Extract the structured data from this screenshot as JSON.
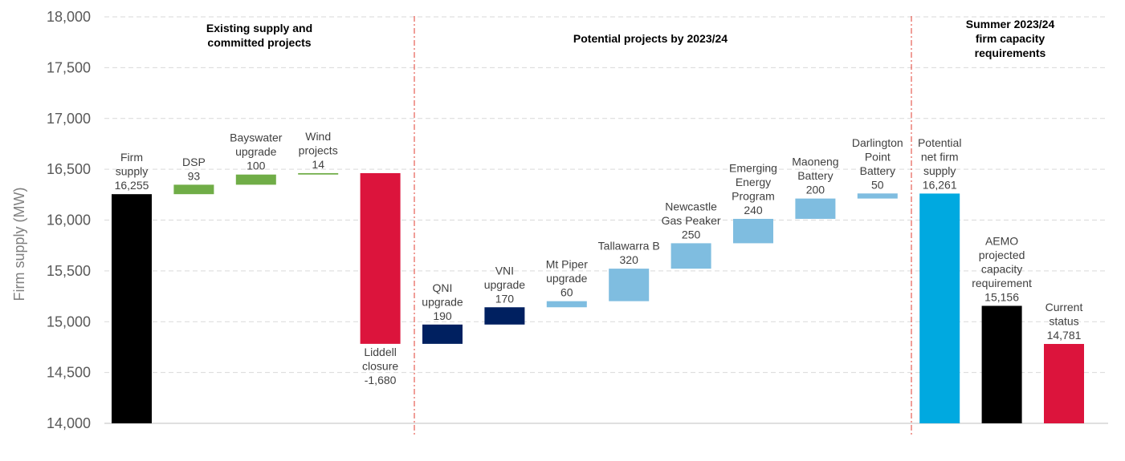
{
  "chart_data": {
    "type": "bar",
    "subtype": "waterfall",
    "ylabel": "Firm supply (MW)",
    "ylim": [
      14000,
      18000
    ],
    "yticks": [
      "14,000",
      "14,500",
      "15,000",
      "15,500",
      "16,000",
      "16,500",
      "17,000",
      "17,500",
      "18,000"
    ],
    "grid": true,
    "sections": [
      {
        "lines": [
          "Existing supply and",
          "committed projects"
        ]
      },
      {
        "lines": [
          "Potential projects by 2023/24"
        ]
      },
      {
        "lines": [
          "Summer 2023/24",
          "firm capacity",
          "requirements"
        ]
      }
    ],
    "colors": {
      "black": "#000000",
      "green": "#70ad47",
      "red": "#dc143c",
      "navy": "#002060",
      "lightblue": "#7fbde0",
      "cyan": "#00a9e0"
    },
    "bars": [
      {
        "label": [
          "Firm",
          "supply",
          "16,255"
        ],
        "base": 14000,
        "top": 16255,
        "color": "black"
      },
      {
        "label": [
          "DSP",
          "93"
        ],
        "base": 16255,
        "top": 16348,
        "color": "green"
      },
      {
        "label": [
          "Bayswater",
          "upgrade",
          "100"
        ],
        "base": 16348,
        "top": 16448,
        "color": "green"
      },
      {
        "label": [
          "Wind",
          "projects",
          "14"
        ],
        "base": 16448,
        "top": 16462,
        "color": "green"
      },
      {
        "label": [
          "Liddell",
          "closure",
          "-1,680"
        ],
        "base": 14782,
        "top": 16462,
        "color": "red",
        "label_below": true
      },
      {
        "label": [
          "QNI",
          "upgrade",
          "190"
        ],
        "base": 14782,
        "top": 14972,
        "color": "navy"
      },
      {
        "label": [
          "VNI",
          "upgrade",
          "170"
        ],
        "base": 14972,
        "top": 15142,
        "color": "navy"
      },
      {
        "label": [
          "Mt Piper",
          "upgrade",
          "60"
        ],
        "base": 15142,
        "top": 15202,
        "color": "lightblue"
      },
      {
        "label": [
          "Tallawarra B",
          "320"
        ],
        "base": 15202,
        "top": 15522,
        "color": "lightblue"
      },
      {
        "label": [
          "Newcastle",
          "Gas Peaker",
          "250"
        ],
        "base": 15522,
        "top": 15772,
        "color": "lightblue"
      },
      {
        "label": [
          "Emerging",
          "Energy",
          "Program",
          "240"
        ],
        "base": 15772,
        "top": 16012,
        "color": "lightblue"
      },
      {
        "label": [
          "Maoneng",
          "Battery",
          "200"
        ],
        "base": 16012,
        "top": 16212,
        "color": "lightblue"
      },
      {
        "label": [
          "Darlington",
          "Point",
          "Battery",
          "50"
        ],
        "base": 16212,
        "top": 16262,
        "color": "lightblue"
      },
      {
        "label": [
          "Potential",
          "net firm",
          "supply",
          "16,261"
        ],
        "base": 14000,
        "top": 16261,
        "color": "cyan"
      },
      {
        "label": [
          "AEMO",
          "projected",
          "capacity",
          "requirement",
          "15,156"
        ],
        "base": 14000,
        "top": 15156,
        "color": "black"
      },
      {
        "label": [
          "Current",
          "status",
          "14,781"
        ],
        "base": 14000,
        "top": 14781,
        "color": "red"
      }
    ]
  }
}
